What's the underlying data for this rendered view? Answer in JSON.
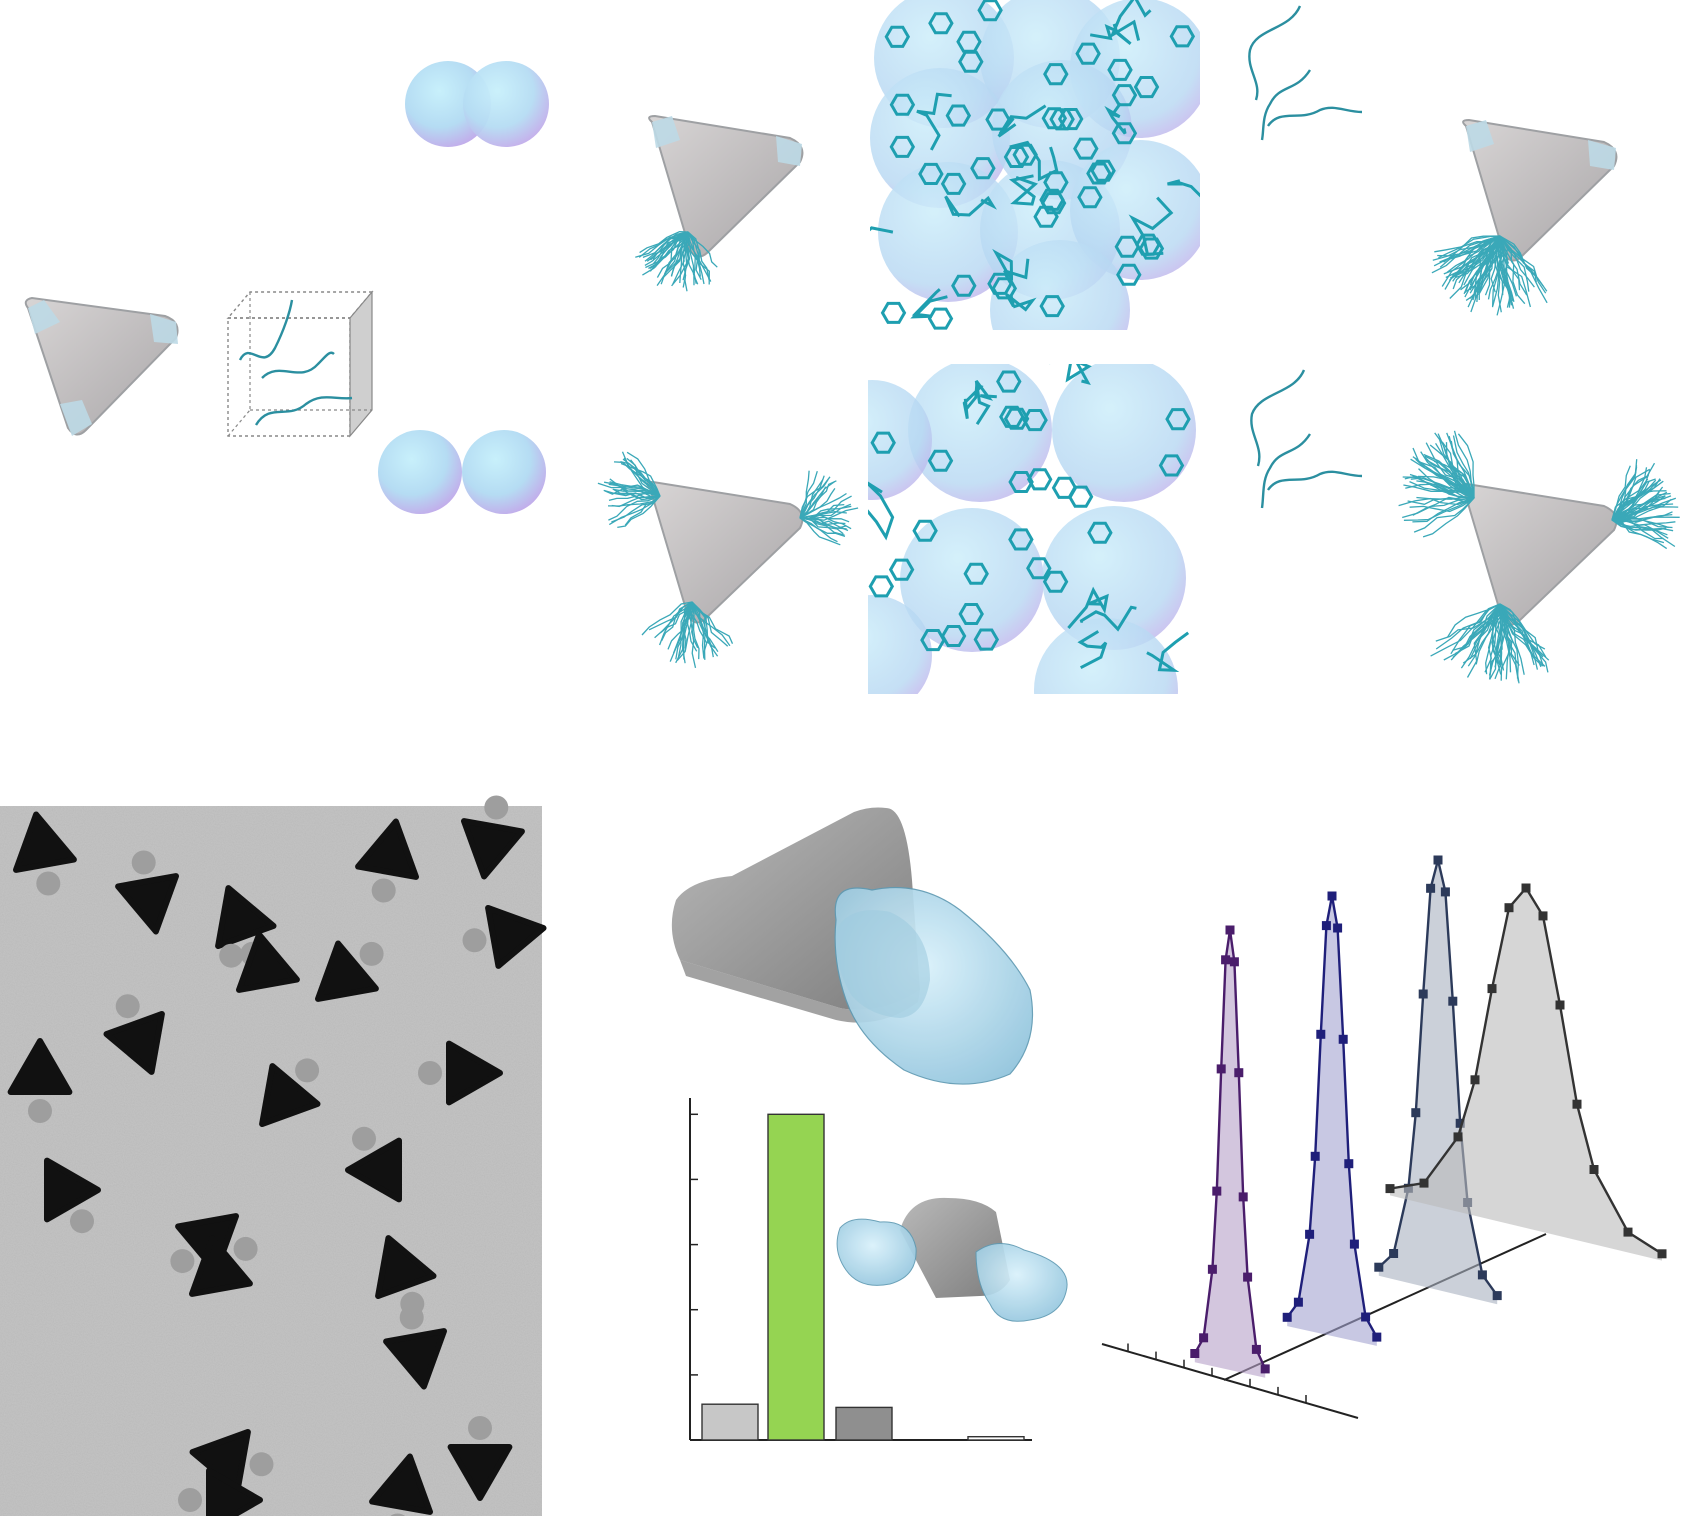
{
  "colors": {
    "gold_body": "#c9c6c6",
    "gold_dark": "#a9a6a8",
    "tip_coating": "#bcd9e6",
    "polymer_cyan": "#3aa8b8",
    "sphere_light": "#bfe6f4",
    "sphere_purple": "#c9b6ec",
    "tem_background": "#c4c4c4",
    "tem_particle": "#111111",
    "bar_grey_light": "#c7c7c7",
    "bar_green": "#95d452",
    "bar_grey_dark": "#8f8f8f",
    "dist_purple": "#4a1d6b",
    "dist_navy": "#1f1f7a",
    "dist_slate": "#2c3a5a",
    "dist_black": "#333333"
  },
  "icons": {
    "nanoprism": "triangle-nanoprism-icon",
    "polymer_box": "polymer-solution-box-icon",
    "dimer": "sphere-dimer-icon"
  },
  "chart_data": [
    {
      "type": "bar",
      "categories": [
        "",
        "",
        "",
        ""
      ],
      "values": [
        0.11,
        1.0,
        0.1,
        0.01
      ],
      "colors": [
        "#c7c7c7",
        "#95d452",
        "#8f8f8f",
        "#ffffff"
      ],
      "title": "",
      "xlabel": "",
      "ylabel": "",
      "ylim": [
        0,
        1.05
      ],
      "grid": false
    },
    {
      "type": "line",
      "title": "",
      "xlabel": "",
      "ylabel": "",
      "series": [
        {
          "color": "#4a1d6b",
          "x": [
            -8,
            -6,
            -4,
            -3,
            -2,
            -1,
            0,
            1,
            2,
            3,
            4,
            6,
            8
          ],
          "y": [
            0.02,
            0.06,
            0.22,
            0.4,
            0.68,
            0.93,
            1.0,
            0.93,
            0.68,
            0.4,
            0.22,
            0.06,
            0.02
          ]
        },
        {
          "color": "#1f1f7a",
          "x": [
            -8,
            -6,
            -4,
            -3,
            -2,
            -1,
            0,
            1,
            2,
            3,
            4,
            6,
            8
          ],
          "y": [
            0.02,
            0.06,
            0.22,
            0.4,
            0.68,
            0.93,
            1.0,
            0.93,
            0.68,
            0.4,
            0.22,
            0.06,
            0.02
          ]
        },
        {
          "color": "#2c3a5a",
          "x": [
            -8,
            -6,
            -4,
            -3,
            -2,
            -1,
            0,
            1,
            2,
            3,
            4,
            6,
            8
          ],
          "y": [
            0.02,
            0.06,
            0.22,
            0.4,
            0.68,
            0.93,
            1.0,
            0.93,
            0.68,
            0.4,
            0.22,
            0.06,
            0.02
          ]
        },
        {
          "color": "#333333",
          "x": [
            -8,
            -6,
            -4,
            -3,
            -2,
            -1,
            0,
            1,
            2,
            3,
            4,
            6,
            8
          ],
          "y": [
            0.02,
            0.06,
            0.22,
            0.4,
            0.68,
            0.93,
            1.0,
            0.93,
            0.68,
            0.4,
            0.22,
            0.06,
            0.02
          ]
        }
      ]
    }
  ]
}
